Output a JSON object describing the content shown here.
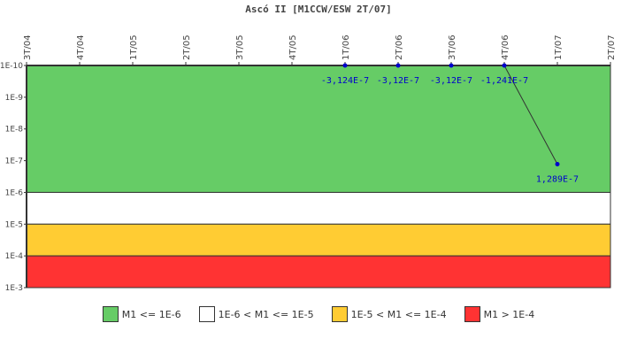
{
  "chart_data": {
    "type": "line",
    "title": "Ascó II [M1CCW/ESW 2T/07]",
    "xlabel": "",
    "ylabel": "",
    "x_categories": [
      "3T/04",
      "4T/04",
      "1T/05",
      "2T/05",
      "3T/05",
      "4T/05",
      "1T/06",
      "2T/06",
      "3T/06",
      "4T/06",
      "1T/07",
      "2T/07"
    ],
    "y_scale": "log",
    "y_inverted": true,
    "y_ticks": [
      "1E-10",
      "1E-9",
      "1E-8",
      "1E-7",
      "1E-6",
      "1E-5",
      "1E-4",
      "1E-3"
    ],
    "ylim": [
      1e-10,
      0.001
    ],
    "series": [
      {
        "name": "M1",
        "points": [
          {
            "x": "1T/06",
            "value": -3.124e-07,
            "label": "-3,124E-7"
          },
          {
            "x": "2T/06",
            "value": -3.12e-07,
            "label": "-3,12E-7"
          },
          {
            "x": "3T/06",
            "value": -3.12e-07,
            "label": "-3,12E-7"
          },
          {
            "x": "4T/06",
            "value": -1.241e-07,
            "label": "-1,241E-7"
          },
          {
            "x": "1T/07",
            "value": 1.289e-07,
            "label": "1,289E-7"
          }
        ]
      }
    ],
    "bands": [
      {
        "label": "M1 <= 1E-6",
        "from": 1e-10,
        "to": 1e-06,
        "color": "#66cc66"
      },
      {
        "label": "1E-6 < M1 <= 1E-5",
        "from": 1e-06,
        "to": 1e-05,
        "color": "#ffffff"
      },
      {
        "label": "1E-5 < M1 <= 1E-4",
        "from": 1e-05,
        "to": 0.0001,
        "color": "#ffcc33"
      },
      {
        "label": "M1 > 1E-4",
        "from": 0.0001,
        "to": 0.001,
        "color": "#ff3333"
      }
    ],
    "grid": false,
    "legend_position": "bottom"
  }
}
